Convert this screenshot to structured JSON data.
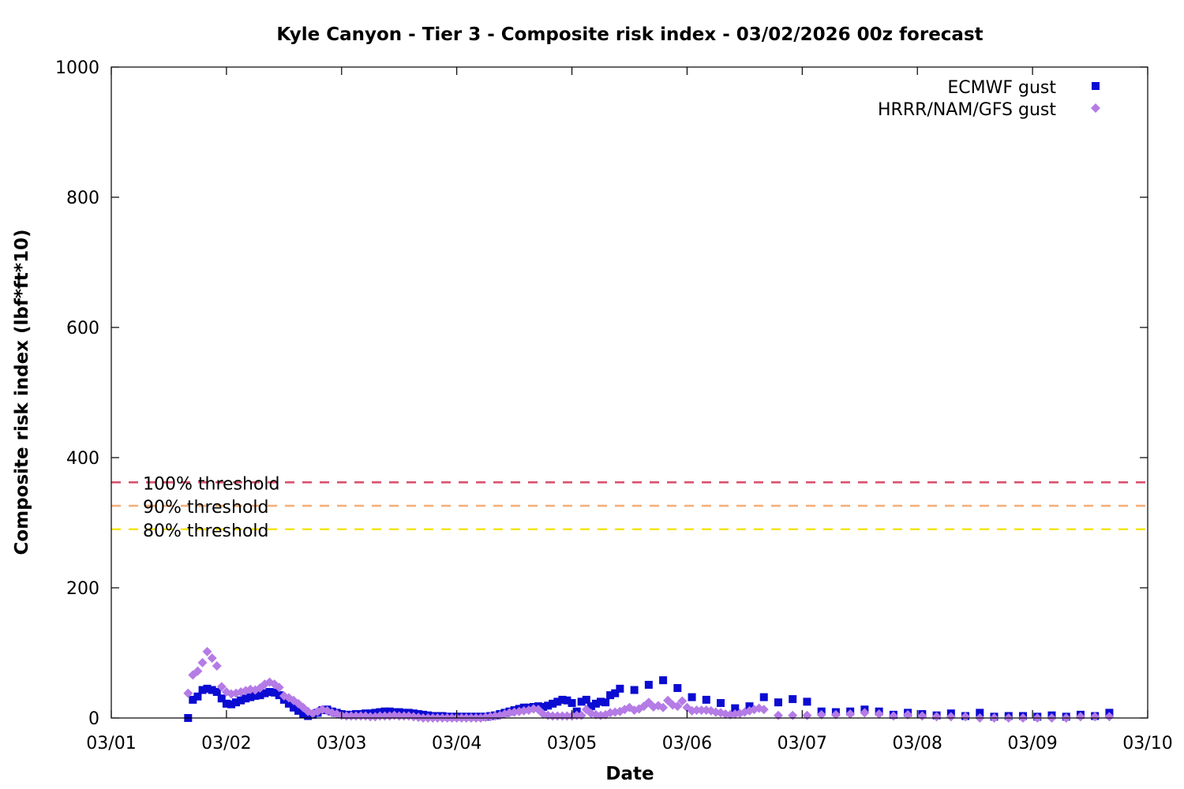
{
  "chart_data": {
    "type": "scatter",
    "title": "Kyle Canyon - Tier 3 - Composite risk index - 03/02/2026 00z forecast",
    "xlabel": "Date",
    "ylabel": "Composite risk index (lbf*ft*10)",
    "xlim": [
      0,
      9
    ],
    "ylim": [
      0,
      1000
    ],
    "x_unit": "days from 03/01",
    "x_ticks": [
      {
        "value": 0,
        "label": "03/01"
      },
      {
        "value": 1,
        "label": "03/02"
      },
      {
        "value": 2,
        "label": "03/03"
      },
      {
        "value": 3,
        "label": "03/04"
      },
      {
        "value": 4,
        "label": "03/05"
      },
      {
        "value": 5,
        "label": "03/06"
      },
      {
        "value": 6,
        "label": "03/07"
      },
      {
        "value": 7,
        "label": "03/08"
      },
      {
        "value": 8,
        "label": "03/09"
      },
      {
        "value": 9,
        "label": "03/10"
      }
    ],
    "y_ticks": [
      {
        "value": 0,
        "label": "0"
      },
      {
        "value": 200,
        "label": "200"
      },
      {
        "value": 400,
        "label": "400"
      },
      {
        "value": 600,
        "label": "600"
      },
      {
        "value": 800,
        "label": "800"
      },
      {
        "value": 1000,
        "label": "1000"
      }
    ],
    "legend_position": "top-right",
    "grid": false,
    "thresholds": [
      {
        "label": "100% threshold",
        "value": 362,
        "color": "#d9536f"
      },
      {
        "label": "90% threshold",
        "value": 326,
        "color": "#f4b07a"
      },
      {
        "label": "80% threshold",
        "value": 290,
        "color": "#f5e41a"
      }
    ],
    "series": [
      {
        "name": "ECMWF gust",
        "marker": "square",
        "color": "#0b0bd2",
        "points": [
          [
            0.667,
            0
          ],
          [
            0.708,
            28
          ],
          [
            0.75,
            33
          ],
          [
            0.792,
            43
          ],
          [
            0.833,
            45
          ],
          [
            0.875,
            43
          ],
          [
            0.917,
            40
          ],
          [
            0.958,
            30
          ],
          [
            1.0,
            22
          ],
          [
            1.042,
            21
          ],
          [
            1.083,
            24
          ],
          [
            1.125,
            27
          ],
          [
            1.167,
            30
          ],
          [
            1.208,
            32
          ],
          [
            1.25,
            34
          ],
          [
            1.292,
            35
          ],
          [
            1.333,
            38
          ],
          [
            1.375,
            40
          ],
          [
            1.417,
            39
          ],
          [
            1.458,
            35
          ],
          [
            1.5,
            28
          ],
          [
            1.542,
            22
          ],
          [
            1.583,
            16
          ],
          [
            1.625,
            11
          ],
          [
            1.667,
            6
          ],
          [
            1.708,
            3
          ],
          [
            1.75,
            5
          ],
          [
            1.792,
            8
          ],
          [
            1.833,
            12
          ],
          [
            1.875,
            13
          ],
          [
            1.917,
            10
          ],
          [
            1.958,
            8
          ],
          [
            2.0,
            6
          ],
          [
            2.042,
            5
          ],
          [
            2.083,
            5
          ],
          [
            2.125,
            6
          ],
          [
            2.167,
            6
          ],
          [
            2.208,
            7
          ],
          [
            2.25,
            7
          ],
          [
            2.292,
            8
          ],
          [
            2.333,
            9
          ],
          [
            2.375,
            10
          ],
          [
            2.417,
            10
          ],
          [
            2.458,
            9
          ],
          [
            2.5,
            9
          ],
          [
            2.542,
            8
          ],
          [
            2.583,
            8
          ],
          [
            2.625,
            7
          ],
          [
            2.667,
            6
          ],
          [
            2.708,
            5
          ],
          [
            2.75,
            4
          ],
          [
            2.792,
            3
          ],
          [
            2.833,
            3
          ],
          [
            2.875,
            3
          ],
          [
            2.917,
            2
          ],
          [
            2.958,
            2
          ],
          [
            3.0,
            2
          ],
          [
            3.042,
            2
          ],
          [
            3.083,
            2
          ],
          [
            3.125,
            2
          ],
          [
            3.167,
            2
          ],
          [
            3.208,
            2
          ],
          [
            3.25,
            2
          ],
          [
            3.292,
            3
          ],
          [
            3.333,
            4
          ],
          [
            3.375,
            6
          ],
          [
            3.417,
            8
          ],
          [
            3.458,
            10
          ],
          [
            3.5,
            12
          ],
          [
            3.542,
            14
          ],
          [
            3.583,
            16
          ],
          [
            3.625,
            16
          ],
          [
            3.667,
            17
          ],
          [
            3.708,
            18
          ],
          [
            3.75,
            17
          ],
          [
            3.792,
            19
          ],
          [
            3.833,
            22
          ],
          [
            3.875,
            25
          ],
          [
            3.917,
            28
          ],
          [
            3.958,
            27
          ],
          [
            4.0,
            23
          ],
          [
            4.042,
            10
          ],
          [
            4.083,
            25
          ],
          [
            4.125,
            28
          ],
          [
            4.167,
            18
          ],
          [
            4.208,
            22
          ],
          [
            4.25,
            25
          ],
          [
            4.292,
            24
          ],
          [
            4.333,
            35
          ],
          [
            4.375,
            38
          ],
          [
            4.417,
            45
          ],
          [
            4.542,
            43
          ],
          [
            4.667,
            51
          ],
          [
            4.792,
            58
          ],
          [
            4.917,
            46
          ],
          [
            5.042,
            32
          ],
          [
            5.167,
            28
          ],
          [
            5.292,
            23
          ],
          [
            5.417,
            15
          ],
          [
            5.542,
            18
          ],
          [
            5.667,
            32
          ],
          [
            5.792,
            24
          ],
          [
            5.917,
            29
          ],
          [
            6.042,
            25
          ],
          [
            6.167,
            10
          ],
          [
            6.292,
            9
          ],
          [
            6.417,
            10
          ],
          [
            6.542,
            13
          ],
          [
            6.667,
            10
          ],
          [
            6.792,
            5
          ],
          [
            6.917,
            8
          ],
          [
            7.042,
            6
          ],
          [
            7.167,
            4
          ],
          [
            7.292,
            7
          ],
          [
            7.417,
            3
          ],
          [
            7.542,
            8
          ],
          [
            7.667,
            2
          ],
          [
            7.792,
            3
          ],
          [
            7.917,
            3
          ],
          [
            8.042,
            2
          ],
          [
            8.167,
            4
          ],
          [
            8.292,
            2
          ],
          [
            8.417,
            5
          ],
          [
            8.542,
            3
          ],
          [
            8.667,
            8
          ]
        ]
      },
      {
        "name": "HRRR/NAM/GFS gust",
        "marker": "diamond",
        "color": "#b57be6",
        "points": [
          [
            0.667,
            38
          ],
          [
            0.708,
            66
          ],
          [
            0.75,
            72
          ],
          [
            0.792,
            85
          ],
          [
            0.833,
            102
          ],
          [
            0.875,
            92
          ],
          [
            0.917,
            80
          ],
          [
            0.958,
            48
          ],
          [
            1.0,
            40
          ],
          [
            1.042,
            37
          ],
          [
            1.083,
            38
          ],
          [
            1.125,
            40
          ],
          [
            1.167,
            42
          ],
          [
            1.208,
            44
          ],
          [
            1.25,
            43
          ],
          [
            1.292,
            46
          ],
          [
            1.333,
            52
          ],
          [
            1.375,
            55
          ],
          [
            1.417,
            52
          ],
          [
            1.458,
            47
          ],
          [
            1.5,
            34
          ],
          [
            1.542,
            31
          ],
          [
            1.583,
            27
          ],
          [
            1.625,
            22
          ],
          [
            1.667,
            16
          ],
          [
            1.708,
            10
          ],
          [
            1.75,
            7
          ],
          [
            1.792,
            10
          ],
          [
            1.833,
            13
          ],
          [
            1.875,
            11
          ],
          [
            1.917,
            8
          ],
          [
            1.958,
            6
          ],
          [
            2.0,
            4
          ],
          [
            2.042,
            3
          ],
          [
            2.083,
            3
          ],
          [
            2.125,
            3
          ],
          [
            2.167,
            3
          ],
          [
            2.208,
            3
          ],
          [
            2.25,
            2
          ],
          [
            2.292,
            2
          ],
          [
            2.333,
            3
          ],
          [
            2.375,
            3
          ],
          [
            2.417,
            3
          ],
          [
            2.458,
            4
          ],
          [
            2.5,
            3
          ],
          [
            2.542,
            3
          ],
          [
            2.583,
            3
          ],
          [
            2.625,
            2
          ],
          [
            2.667,
            1
          ],
          [
            2.708,
            0
          ],
          [
            2.75,
            0
          ],
          [
            2.792,
            0
          ],
          [
            2.833,
            0
          ],
          [
            2.875,
            0
          ],
          [
            2.917,
            0
          ],
          [
            2.958,
            0
          ],
          [
            3.0,
            0
          ],
          [
            3.042,
            0
          ],
          [
            3.083,
            0
          ],
          [
            3.125,
            0
          ],
          [
            3.167,
            0
          ],
          [
            3.208,
            0
          ],
          [
            3.25,
            1
          ],
          [
            3.292,
            2
          ],
          [
            3.333,
            3
          ],
          [
            3.375,
            4
          ],
          [
            3.417,
            6
          ],
          [
            3.458,
            8
          ],
          [
            3.5,
            9
          ],
          [
            3.542,
            10
          ],
          [
            3.583,
            11
          ],
          [
            3.625,
            12
          ],
          [
            3.667,
            14
          ],
          [
            3.708,
            13
          ],
          [
            3.75,
            6
          ],
          [
            3.792,
            4
          ],
          [
            3.833,
            3
          ],
          [
            3.875,
            3
          ],
          [
            3.917,
            3
          ],
          [
            3.958,
            3
          ],
          [
            4.0,
            3
          ],
          [
            4.042,
            4
          ],
          [
            4.083,
            4
          ],
          [
            4.125,
            13
          ],
          [
            4.167,
            7
          ],
          [
            4.208,
            5
          ],
          [
            4.25,
            4
          ],
          [
            4.292,
            5
          ],
          [
            4.333,
            8
          ],
          [
            4.375,
            9
          ],
          [
            4.417,
            10
          ],
          [
            4.458,
            13
          ],
          [
            4.5,
            16
          ],
          [
            4.542,
            12
          ],
          [
            4.583,
            14
          ],
          [
            4.625,
            18
          ],
          [
            4.667,
            24
          ],
          [
            4.708,
            17
          ],
          [
            4.75,
            19
          ],
          [
            4.792,
            16
          ],
          [
            4.833,
            27
          ],
          [
            4.875,
            20
          ],
          [
            4.917,
            18
          ],
          [
            4.958,
            26
          ],
          [
            5.0,
            16
          ],
          [
            5.042,
            11
          ],
          [
            5.083,
            12
          ],
          [
            5.125,
            12
          ],
          [
            5.167,
            12
          ],
          [
            5.208,
            11
          ],
          [
            5.25,
            9
          ],
          [
            5.292,
            8
          ],
          [
            5.333,
            6
          ],
          [
            5.375,
            5
          ],
          [
            5.417,
            6
          ],
          [
            5.458,
            7
          ],
          [
            5.5,
            9
          ],
          [
            5.542,
            11
          ],
          [
            5.583,
            13
          ],
          [
            5.625,
            15
          ],
          [
            5.667,
            13
          ],
          [
            5.792,
            4
          ],
          [
            5.917,
            4
          ],
          [
            6.042,
            4
          ],
          [
            6.167,
            5
          ],
          [
            6.292,
            5
          ],
          [
            6.417,
            6
          ],
          [
            6.542,
            8
          ],
          [
            6.667,
            6
          ],
          [
            6.792,
            3
          ],
          [
            6.917,
            5
          ],
          [
            7.042,
            3
          ],
          [
            7.167,
            2
          ],
          [
            7.292,
            2
          ],
          [
            7.417,
            2
          ],
          [
            7.542,
            0
          ],
          [
            7.667,
            0
          ],
          [
            7.792,
            0
          ],
          [
            7.917,
            0
          ],
          [
            8.042,
            0
          ],
          [
            8.167,
            0
          ],
          [
            8.292,
            0
          ],
          [
            8.417,
            2
          ],
          [
            8.542,
            2
          ],
          [
            8.667,
            2
          ]
        ]
      }
    ]
  },
  "colors": {
    "axis": "#000000",
    "background": "#ffffff"
  }
}
